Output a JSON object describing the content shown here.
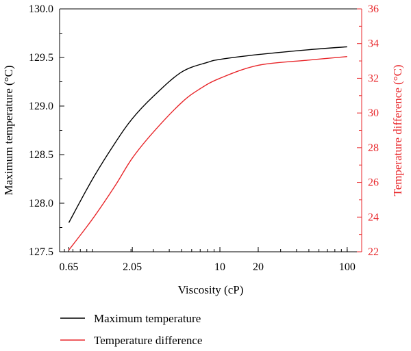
{
  "chart_data": {
    "type": "line",
    "xlabel": "Viscosity (cP)",
    "x_scale": "log",
    "xlim": [
      0.55,
      130
    ],
    "x_ticks": [
      0.65,
      2.05,
      10,
      20,
      100
    ],
    "x_tick_labels": [
      "0.65",
      "2.05",
      "10",
      "20",
      "100"
    ],
    "y_left": {
      "label": "Maximum temperature (°C)",
      "ylim": [
        127.5,
        130.0
      ],
      "ticks": [
        127.5,
        128.0,
        128.5,
        129.0,
        129.5,
        130.0
      ],
      "tick_labels": [
        "127.5",
        "128.0",
        "128.5",
        "129.0",
        "129.5",
        "130.0"
      ],
      "color": "#000000"
    },
    "y_right": {
      "label": "Temperature difference (°C)",
      "ylim": [
        22,
        36
      ],
      "ticks": [
        22,
        24,
        26,
        28,
        30,
        32,
        34,
        36
      ],
      "tick_labels": [
        "22",
        "24",
        "26",
        "28",
        "30",
        "32",
        "34",
        "36"
      ],
      "color": "#e8262a"
    },
    "series": [
      {
        "name": "Maximum temperature",
        "axis": "left",
        "color": "#000000",
        "x": [
          0.65,
          1.0,
          1.5,
          2.05,
          3.0,
          5.0,
          8.0,
          10,
          20,
          50,
          100
        ],
        "values": [
          127.8,
          128.25,
          128.62,
          128.87,
          129.1,
          129.35,
          129.45,
          129.48,
          129.53,
          129.58,
          129.61
        ]
      },
      {
        "name": "Temperature difference",
        "axis": "right",
        "color": "#e8262a",
        "x": [
          0.65,
          1.0,
          1.5,
          2.05,
          3.0,
          5.0,
          7.0,
          10,
          20,
          50,
          100
        ],
        "values": [
          22.1,
          23.9,
          25.8,
          27.4,
          28.9,
          30.6,
          31.4,
          32.0,
          32.75,
          33.05,
          33.25
        ]
      }
    ],
    "legend": {
      "placement": "bottom-left",
      "entries": [
        "Maximum temperature",
        "Temperature difference"
      ]
    }
  }
}
